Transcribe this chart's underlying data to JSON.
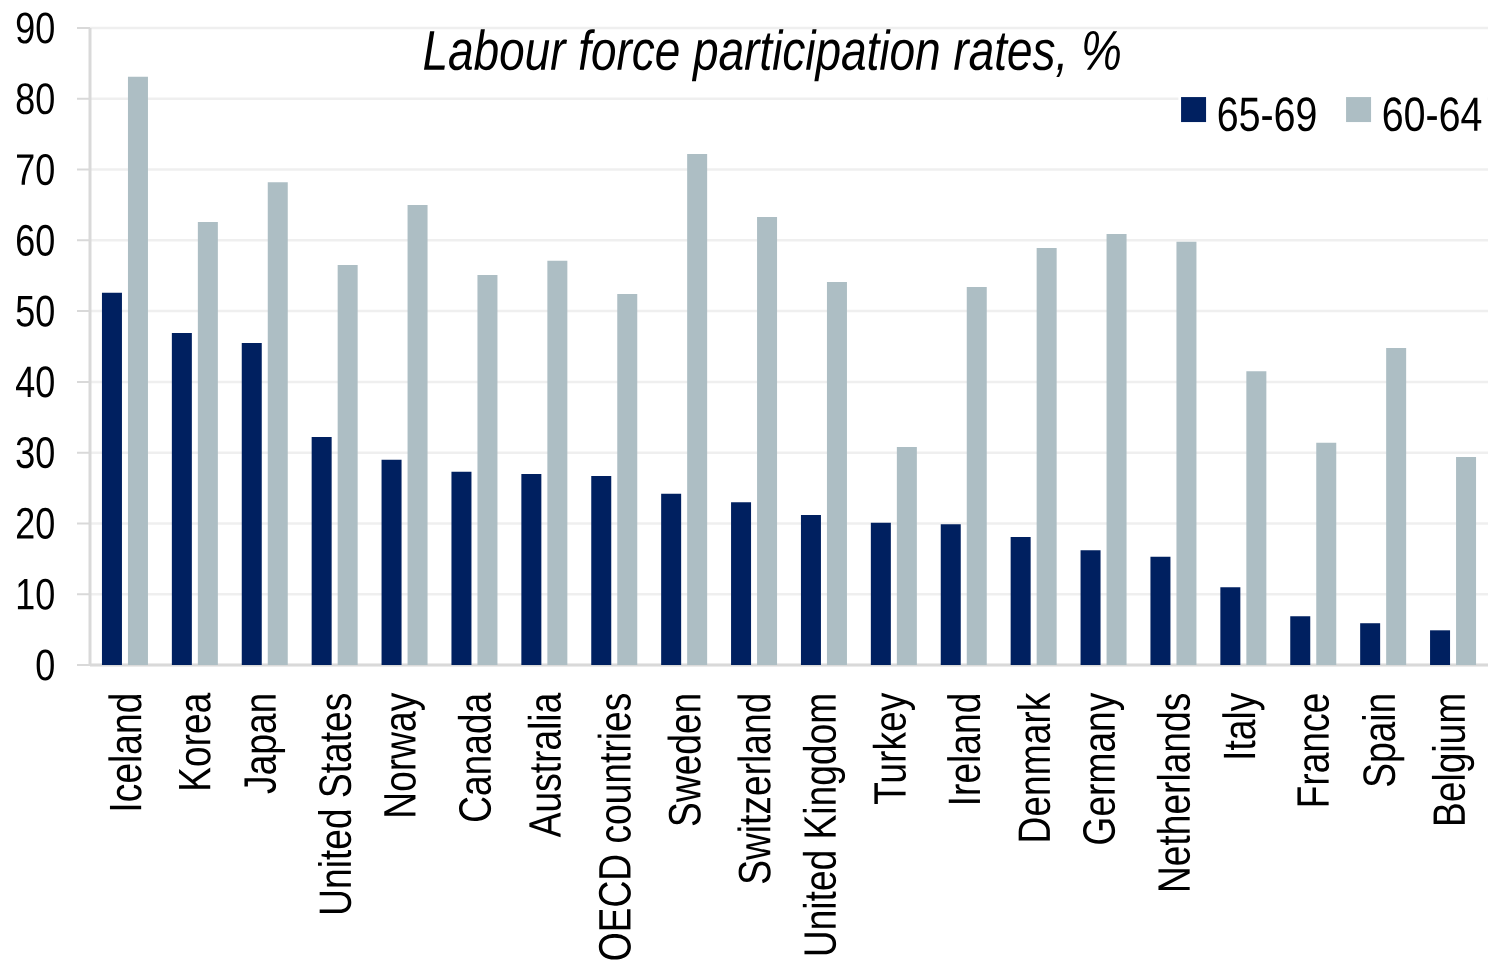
{
  "chart_data": {
    "type": "bar",
    "title": "Labour force participation rates, %",
    "categories": [
      "Iceland",
      "Korea",
      "Japan",
      "United States",
      "Norway",
      "Canada",
      "Australia",
      "OECD countries",
      "Sweden",
      "Switzerland",
      "United Kingdom",
      "Turkey",
      "Ireland",
      "Denmark",
      "Germany",
      "Netherlands",
      "Italy",
      "France",
      "Spain",
      "Belgium"
    ],
    "series": [
      {
        "name": "65-69",
        "color": "#002060",
        "values": [
          52.6,
          46.9,
          45.5,
          32.2,
          29.0,
          27.3,
          27.0,
          26.7,
          24.2,
          23.0,
          21.2,
          20.1,
          19.9,
          18.1,
          16.2,
          15.3,
          11.0,
          6.9,
          5.9,
          4.9
        ]
      },
      {
        "name": "60-64",
        "color": "#adbec4",
        "values": [
          83.1,
          62.6,
          68.2,
          56.5,
          65.0,
          55.1,
          57.1,
          52.4,
          72.2,
          63.3,
          54.1,
          30.8,
          53.4,
          58.9,
          60.9,
          59.8,
          41.5,
          31.4,
          44.8,
          29.4
        ]
      }
    ],
    "ylim": [
      0,
      90
    ],
    "yticks": [
      0,
      10,
      20,
      30,
      40,
      50,
      60,
      70,
      80,
      90
    ],
    "grid": "y",
    "legend": "top right"
  }
}
